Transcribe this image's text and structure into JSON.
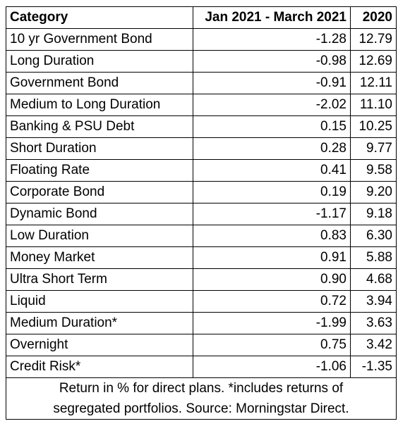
{
  "table": {
    "headers": [
      "Category",
      "Jan 2021 - March 2021",
      "2020"
    ],
    "rows": [
      [
        "10 yr Government Bond",
        "-1.28",
        "12.79"
      ],
      [
        "Long Duration",
        "-0.98",
        "12.69"
      ],
      [
        "Government Bond",
        "-0.91",
        "12.11"
      ],
      [
        "Medium to Long Duration",
        "-2.02",
        "11.10"
      ],
      [
        "Banking & PSU Debt",
        "0.15",
        "10.25"
      ],
      [
        "Short Duration",
        "0.28",
        "9.77"
      ],
      [
        "Floating Rate",
        "0.41",
        "9.58"
      ],
      [
        "Corporate Bond",
        "0.19",
        "9.20"
      ],
      [
        "Dynamic Bond",
        "-1.17",
        "9.18"
      ],
      [
        "Low Duration",
        "0.83",
        "6.30"
      ],
      [
        "Money Market",
        "0.91",
        "5.88"
      ],
      [
        "Ultra Short Term",
        "0.90",
        "4.68"
      ],
      [
        "Liquid",
        "0.72",
        "3.94"
      ],
      [
        "Medium Duration*",
        "-1.99",
        "3.63"
      ],
      [
        "Overnight",
        "0.75",
        "3.42"
      ],
      [
        "Credit Risk*",
        "-1.06",
        "-1.35"
      ]
    ],
    "footnote": [
      "Return in % for direct plans. *includes returns of",
      "segregated portfolios. Source: Morningstar Direct."
    ]
  }
}
